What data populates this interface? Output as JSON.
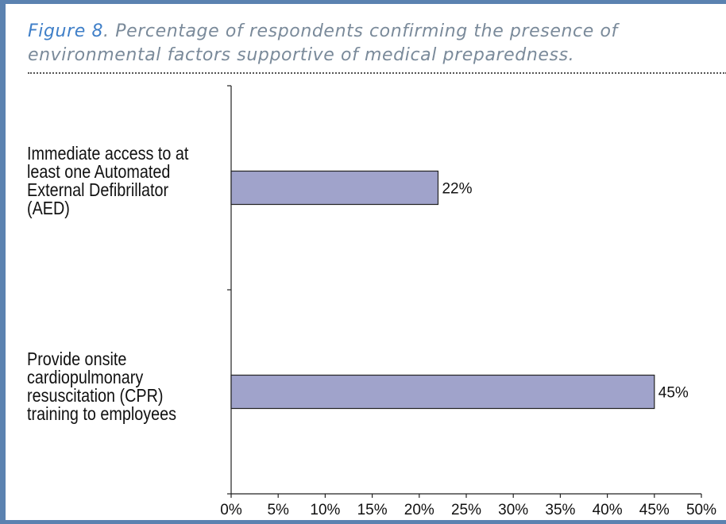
{
  "caption": {
    "figure_label": "Figure 8",
    "text": ". Percentage of respondents confirming the presence of environmental factors supportive of medical preparedness."
  },
  "chart_data": {
    "type": "bar",
    "orientation": "horizontal",
    "categories": [
      [
        "Immediate access to at",
        "least one Automated",
        "External Defibrillator",
        "(AED)"
      ],
      [
        "Provide onsite",
        "cardiopulmonary",
        "resuscitation (CPR)",
        "training to employees"
      ]
    ],
    "values": [
      22,
      45
    ],
    "value_labels": [
      "22%",
      "45%"
    ],
    "xlim": [
      0,
      50
    ],
    "xticks": [
      0,
      5,
      10,
      15,
      20,
      25,
      30,
      35,
      40,
      45,
      50
    ],
    "xtick_labels": [
      "0%",
      "5%",
      "10%",
      "15%",
      "20%",
      "25%",
      "30%",
      "35%",
      "40%",
      "45%",
      "50%"
    ],
    "grid": false,
    "legend": false,
    "bar_color": "#a0a3cb",
    "bar_edge_color": "#222222"
  }
}
